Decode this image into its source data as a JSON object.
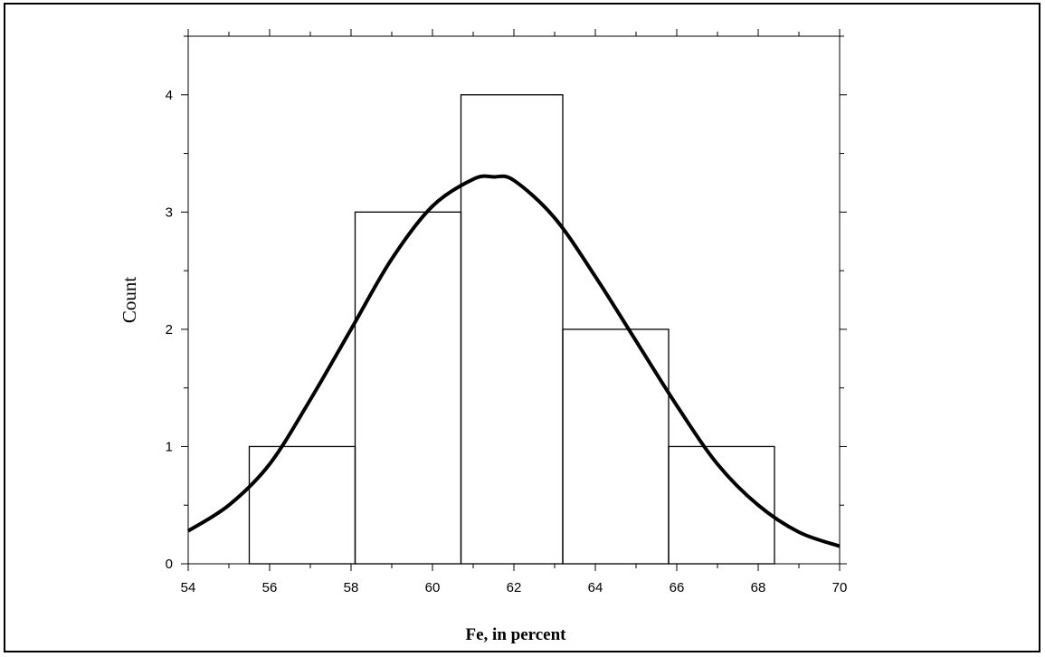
{
  "chart_data": {
    "type": "bar",
    "xlabel": "Fe, in percent",
    "ylabel": "Count",
    "xlim": [
      54,
      70
    ],
    "ylim": [
      0,
      4.5
    ],
    "x_ticks": [
      54,
      56,
      58,
      60,
      62,
      64,
      66,
      68,
      70
    ],
    "y_ticks": [
      0,
      1,
      2,
      3,
      4
    ],
    "grid": false,
    "bins": [
      {
        "from": 55.5,
        "to": 58.1,
        "count": 1
      },
      {
        "from": 58.1,
        "to": 60.7,
        "count": 3
      },
      {
        "from": 60.7,
        "to": 63.2,
        "count": 4
      },
      {
        "from": 63.2,
        "to": 65.8,
        "count": 2
      },
      {
        "from": 65.8,
        "to": 68.4,
        "count": 1
      }
    ],
    "fitted_curve": {
      "type": "normal",
      "x": [
        54,
        55,
        56,
        57,
        58,
        59,
        60,
        61,
        61.5,
        62,
        63,
        64,
        65,
        66,
        67,
        68,
        69,
        70
      ],
      "y": [
        0.28,
        0.5,
        0.85,
        1.4,
        2.0,
        2.6,
        3.05,
        3.28,
        3.3,
        3.27,
        2.95,
        2.45,
        1.9,
        1.35,
        0.85,
        0.5,
        0.27,
        0.15
      ]
    }
  }
}
